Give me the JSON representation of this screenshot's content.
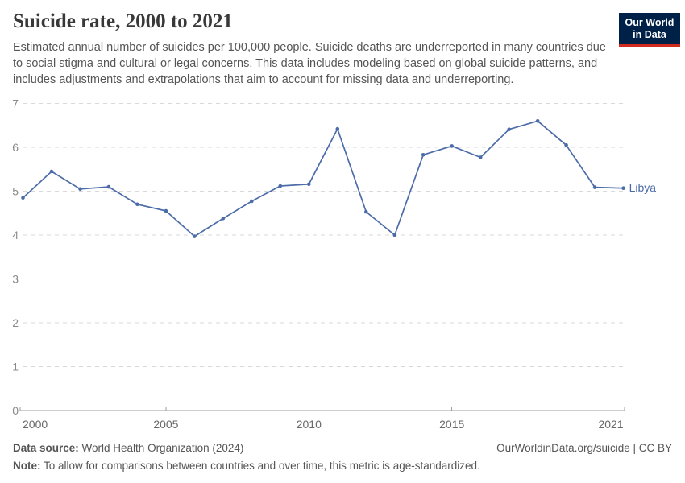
{
  "header": {
    "title": "Suicide rate, 2000 to 2021",
    "subtitle": "Estimated annual number of suicides per 100,000 people. Suicide deaths are underreported in many countries due to social stigma and cultural or legal concerns. This data includes modeling based on global suicide patterns, and includes adjustments and extrapolations that aim to account for missing data and underreporting.",
    "logo": {
      "line1": "Our World",
      "line2": "in Data",
      "bg_color": "#002147",
      "accent_color": "#D12B1F"
    }
  },
  "chart_data": {
    "type": "line",
    "title": "Suicide rate, 2000 to 2021",
    "x": [
      2000,
      2001,
      2002,
      2003,
      2004,
      2005,
      2006,
      2007,
      2008,
      2009,
      2010,
      2011,
      2012,
      2013,
      2014,
      2015,
      2016,
      2017,
      2018,
      2019,
      2020,
      2021
    ],
    "series": [
      {
        "name": "Libya",
        "color": "#4C6CA9",
        "values": [
          4.85,
          5.45,
          5.05,
          5.1,
          4.7,
          4.55,
          3.97,
          4.38,
          4.77,
          5.12,
          5.16,
          6.42,
          4.53,
          4.0,
          5.83,
          6.03,
          5.77,
          6.41,
          6.6,
          6.05,
          5.09,
          5.07
        ]
      }
    ],
    "xlabel": "",
    "ylabel": "",
    "ylim": [
      0,
      7
    ],
    "yticks": [
      0,
      1,
      2,
      3,
      4,
      5,
      6,
      7
    ],
    "xticks": [
      2000,
      2005,
      2010,
      2015,
      2021
    ],
    "grid": "horizontal-dashed",
    "legend_position": "end-of-line-label"
  },
  "footer": {
    "datasource_label": "Data source:",
    "datasource_value": " World Health Organization (2024)",
    "rights": "OurWorldinData.org/suicide | CC BY",
    "note_label": "Note:",
    "note_value": " To allow for comparisons between countries and over time, this metric is age-standardized."
  }
}
